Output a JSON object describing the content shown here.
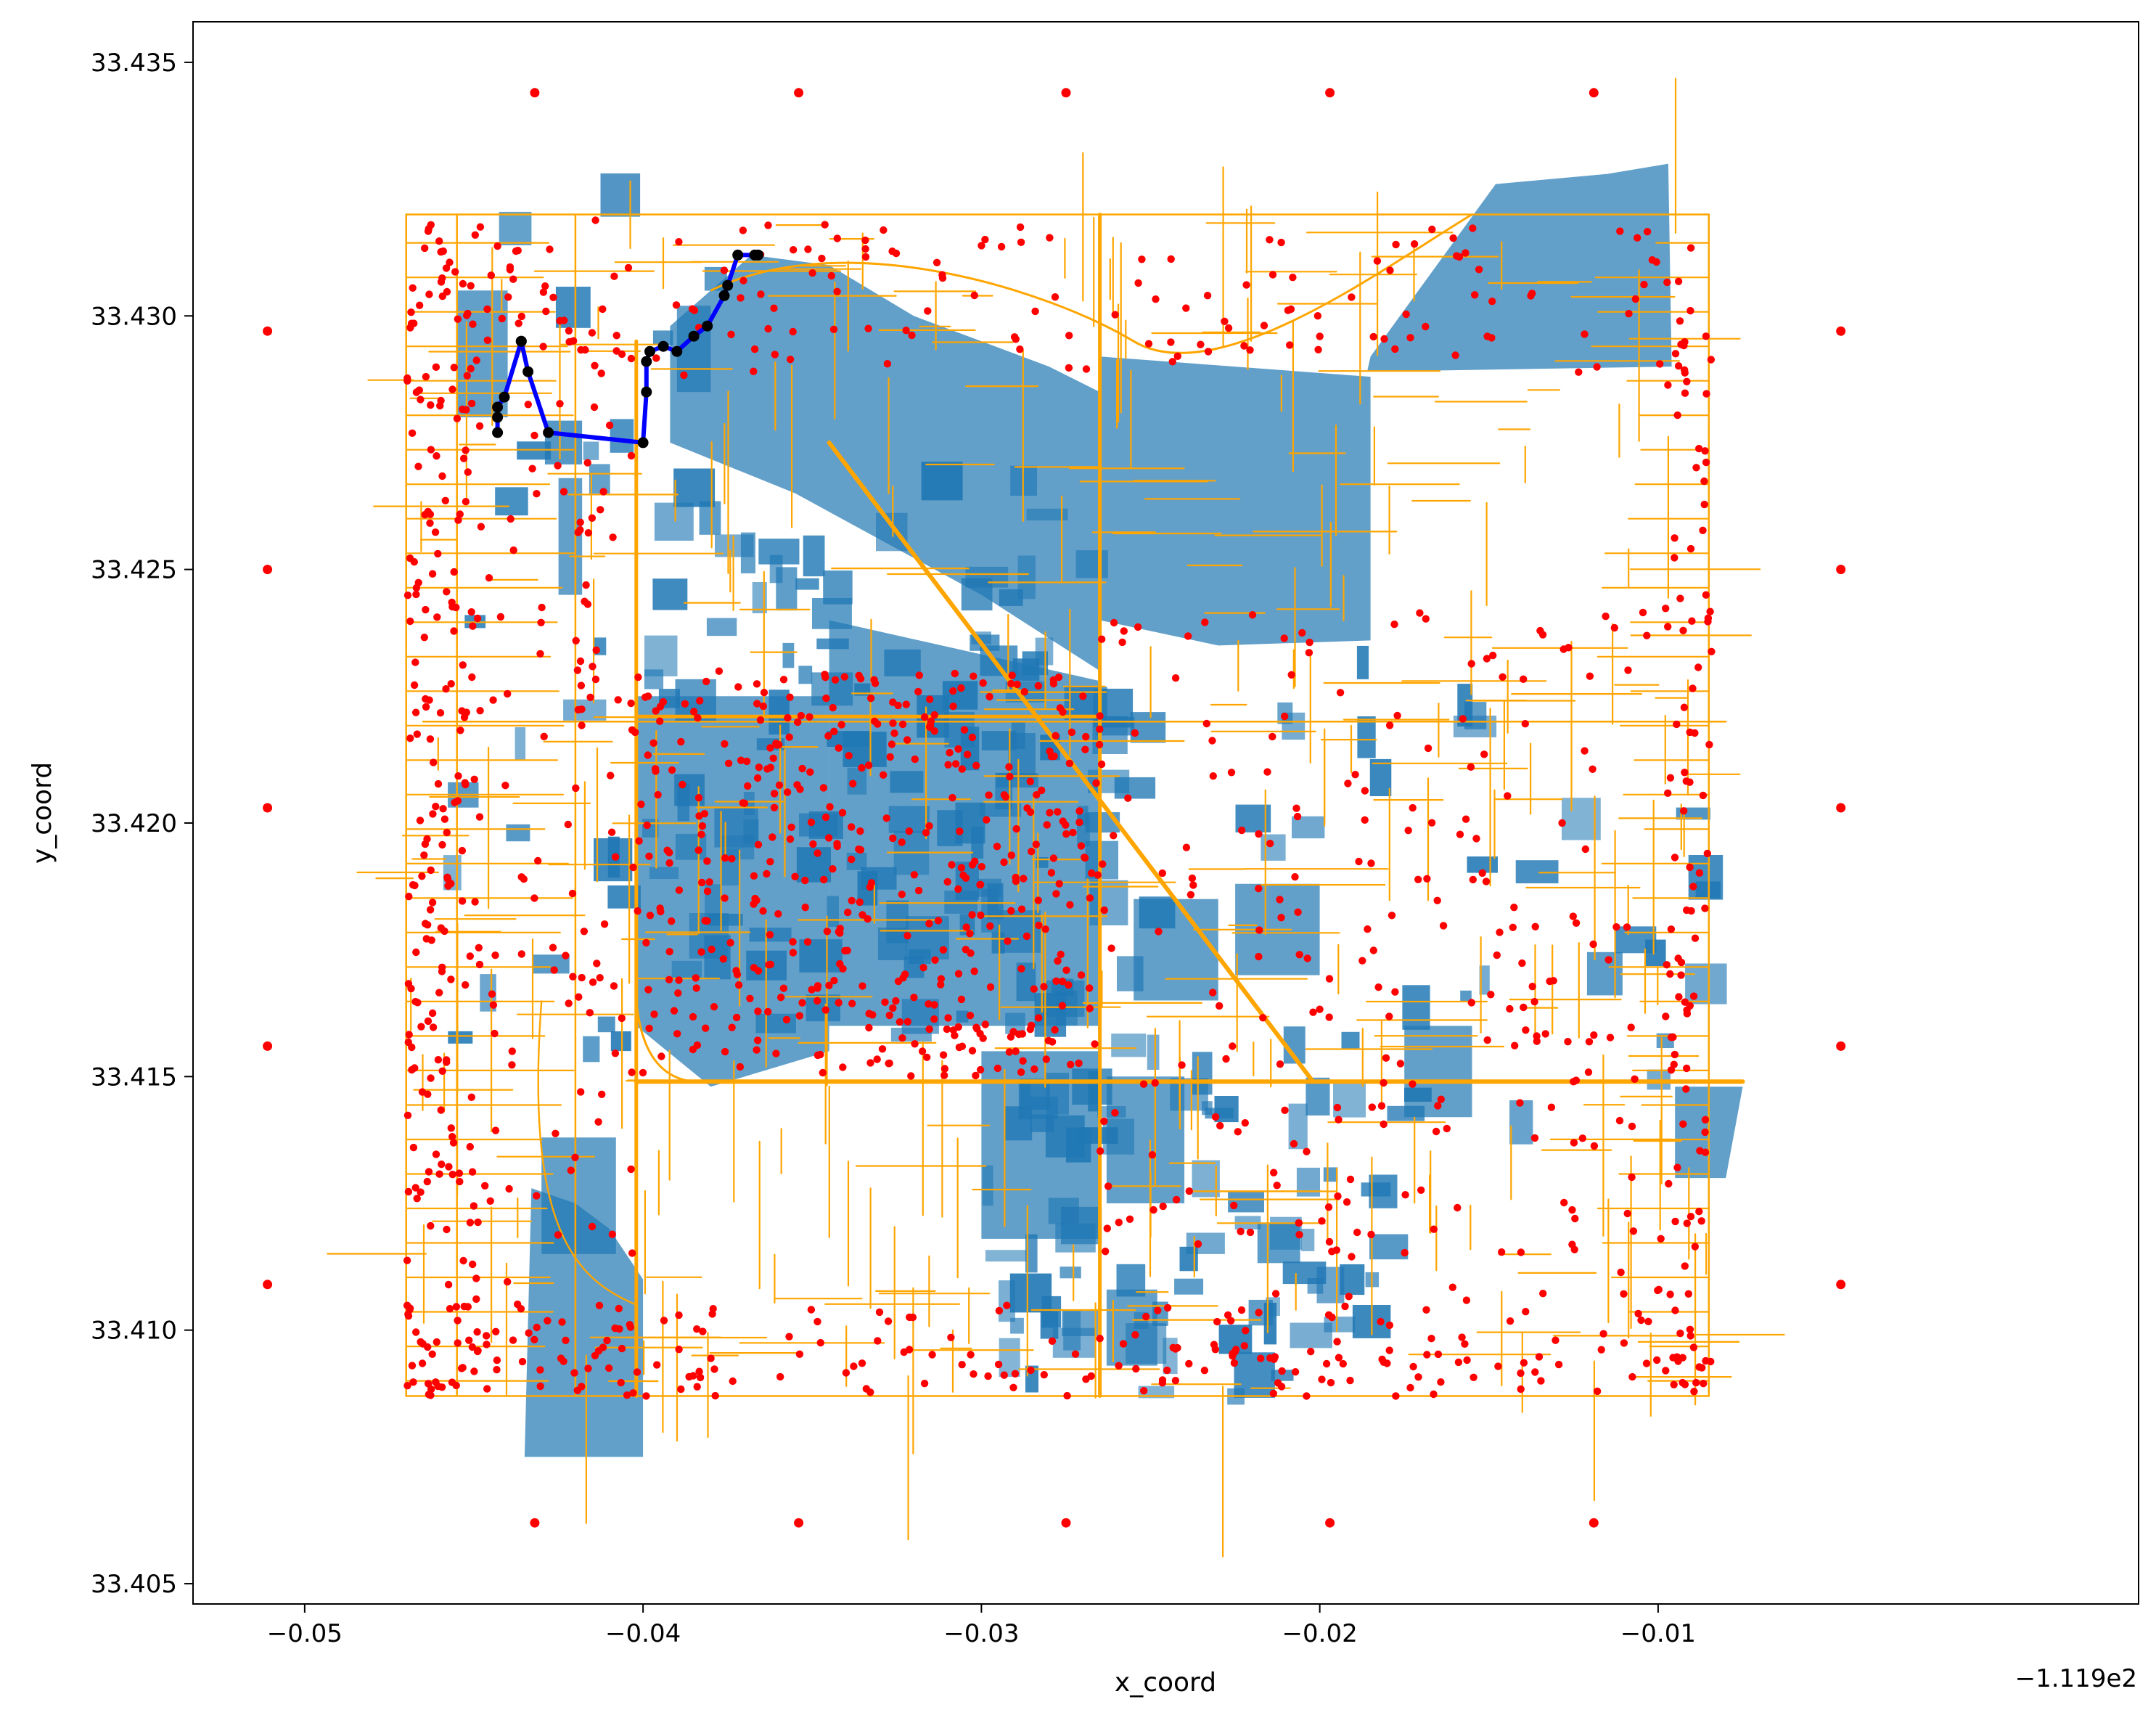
{
  "chart_data": {
    "type": "scatter",
    "title": "",
    "xlabel": "x_coord",
    "ylabel": "y_coord",
    "x_offset_label": "−1.119e2",
    "xlim": [
      -0.0533,
      0.0042
    ],
    "ylim": [
      33.4046,
      33.4358
    ],
    "x_ticks": [
      -0.05,
      -0.04,
      -0.03,
      -0.02,
      -0.01
    ],
    "x_tick_labels": [
      "−0.05",
      "−0.04",
      "−0.03",
      "−0.02",
      "−0.01"
    ],
    "y_ticks": [
      33.405,
      33.41,
      33.415,
      33.42,
      33.425,
      33.43,
      33.435
    ],
    "y_tick_labels": [
      "33.405",
      "33.410",
      "33.415",
      "33.420",
      "33.425",
      "33.430",
      "33.435"
    ],
    "grid": false,
    "legend": "none",
    "colors": {
      "polygons": "#1f77b4",
      "network_edges": "#ffa500",
      "nodes": "#ff0000",
      "route": "#0000ff",
      "route_nodes": "#000000"
    },
    "grid_nodes": {
      "x": [
        -0.0432,
        -0.0354,
        -0.0275,
        -0.0197,
        -0.0119,
        -0.0511,
        -0.0046,
        -0.0511,
        -0.0046,
        -0.0511,
        -0.0046,
        -0.0511,
        -0.0046,
        -0.0511,
        -0.0046,
        -0.0432,
        -0.0354,
        -0.0275,
        -0.0197,
        -0.0119
      ],
      "y": [
        33.4344,
        33.4344,
        33.4344,
        33.4344,
        33.4344,
        33.4297,
        33.4297,
        33.425,
        33.425,
        33.4203,
        33.4203,
        33.4156,
        33.4156,
        33.4109,
        33.4109,
        33.4062,
        33.4062,
        33.4062,
        33.4062,
        33.4062
      ]
    },
    "route": {
      "x": [
        -0.0366,
        -0.0367,
        -0.0372,
        -0.0375,
        -0.0376,
        -0.0381,
        -0.0385,
        -0.039,
        -0.0394,
        -0.0398,
        -0.0399,
        -0.0399,
        -0.04,
        -0.0428,
        -0.0434,
        -0.0436,
        -0.0436,
        -0.0441,
        -0.0443,
        -0.0443,
        -0.0443
      ],
      "y": [
        33.4312,
        33.4312,
        33.4312,
        33.4306,
        33.4304,
        33.4298,
        33.4296,
        33.4293,
        33.4294,
        33.4293,
        33.4291,
        33.4285,
        33.4275,
        33.4277,
        33.4289,
        33.4295,
        33.4295,
        33.4284,
        33.4282,
        33.428,
        33.4277
      ]
    },
    "series": [
      {
        "values": "street network nodes (dense, several thousand) over building footprints"
      }
    ]
  }
}
